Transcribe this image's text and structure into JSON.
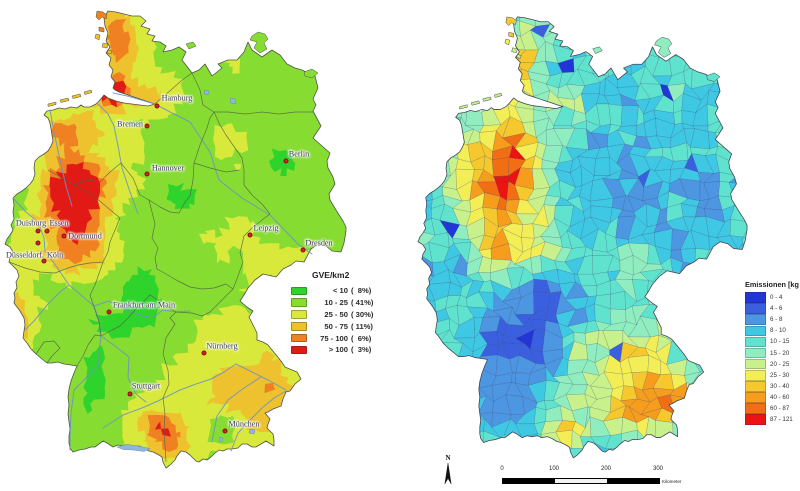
{
  "page": {
    "background": "#ffffff"
  },
  "left_map": {
    "type": "choropleth",
    "subject": "Grossvieheinheiten je km2 (livestock density), Germany",
    "legend": {
      "title": "GVE/km2",
      "entries": [
        {
          "label": "< 10",
          "share": "(  8%)",
          "color": "#2ed42c"
        },
        {
          "label": "10 - 25",
          "share": "( 41%)",
          "color": "#87dc32"
        },
        {
          "label": "25 - 50",
          "share": "( 30%)",
          "color": "#d9e93c"
        },
        {
          "label": "50 - 75",
          "share": "( 11%)",
          "color": "#edc22e"
        },
        {
          "label": "75 - 100",
          "share": "(  6%)",
          "color": "#f08122"
        },
        {
          "label": "> 100",
          "share": "(  3%)",
          "color": "#e21a16"
        }
      ]
    },
    "cities": [
      {
        "name": "Hamburg",
        "dot": [
          157,
          106
        ],
        "label": [
          177,
          98
        ]
      },
      {
        "name": "Bremen",
        "dot": [
          147,
          126
        ],
        "label": [
          130,
          124
        ]
      },
      {
        "name": "Hannover",
        "dot": [
          147,
          174
        ],
        "label": [
          168,
          168
        ]
      },
      {
        "name": "Berlin",
        "dot": [
          286,
          161
        ],
        "label": [
          299,
          154
        ]
      },
      {
        "name": "Duisburg",
        "dot": [
          38,
          231
        ],
        "label": [
          31,
          223
        ]
      },
      {
        "name": "Essen",
        "dot": [
          47,
          231
        ],
        "label": [
          59,
          223
        ]
      },
      {
        "name": "Dortmund",
        "dot": [
          64,
          236
        ],
        "label": [
          85,
          236
        ]
      },
      {
        "name": "Düsseldorf.",
        "dot": [
          38,
          243
        ],
        "label": [
          25,
          255
        ]
      },
      {
        "name": "Köln",
        "dot": [
          44,
          261
        ],
        "label": [
          55,
          255
        ]
      },
      {
        "name": "Leipzig",
        "dot": [
          250,
          235
        ],
        "label": [
          266,
          228
        ]
      },
      {
        "name": "Dresden",
        "dot": [
          303,
          250
        ],
        "label": [
          319,
          243
        ]
      },
      {
        "name": "Frankfurt am Main",
        "dot": [
          109,
          312
        ],
        "label": [
          144,
          305
        ]
      },
      {
        "name": "Nürnberg",
        "dot": [
          204,
          353
        ],
        "label": [
          222,
          346
        ]
      },
      {
        "name": "Stuttgart",
        "dot": [
          130,
          394
        ],
        "label": [
          146,
          386
        ]
      },
      {
        "name": "München",
        "dot": [
          225,
          431
        ],
        "label": [
          244,
          424
        ]
      }
    ]
  },
  "right_map": {
    "type": "choropleth",
    "subject": "Ammoniak-Emissionen je Landkreis, Germany",
    "legend": {
      "title": "Emissionen [kg",
      "entries": [
        {
          "label": "0 - 4",
          "color": "#2136d5"
        },
        {
          "label": "4 - 6",
          "color": "#3a60e0"
        },
        {
          "label": "6 - 8",
          "color": "#4d96e2"
        },
        {
          "label": "8 - 10",
          "color": "#3fc8e4"
        },
        {
          "label": "10 - 15",
          "color": "#5fe3cf"
        },
        {
          "label": "15 - 20",
          "color": "#90edbf"
        },
        {
          "label": "20 - 25",
          "color": "#c8f18c"
        },
        {
          "label": "25 - 30",
          "color": "#f3ee55"
        },
        {
          "label": "30 - 40",
          "color": "#f5c82d"
        },
        {
          "label": "40 - 60",
          "color": "#f79d1d"
        },
        {
          "label": "60 - 87",
          "color": "#f26e14"
        },
        {
          "label": "87 - 121",
          "color": "#ec1412"
        }
      ]
    },
    "north_arrow": {
      "label": "N"
    },
    "scale_bar": {
      "ticks": [
        "0",
        "100",
        "200",
        "300"
      ],
      "unit": "Kilometer"
    }
  }
}
